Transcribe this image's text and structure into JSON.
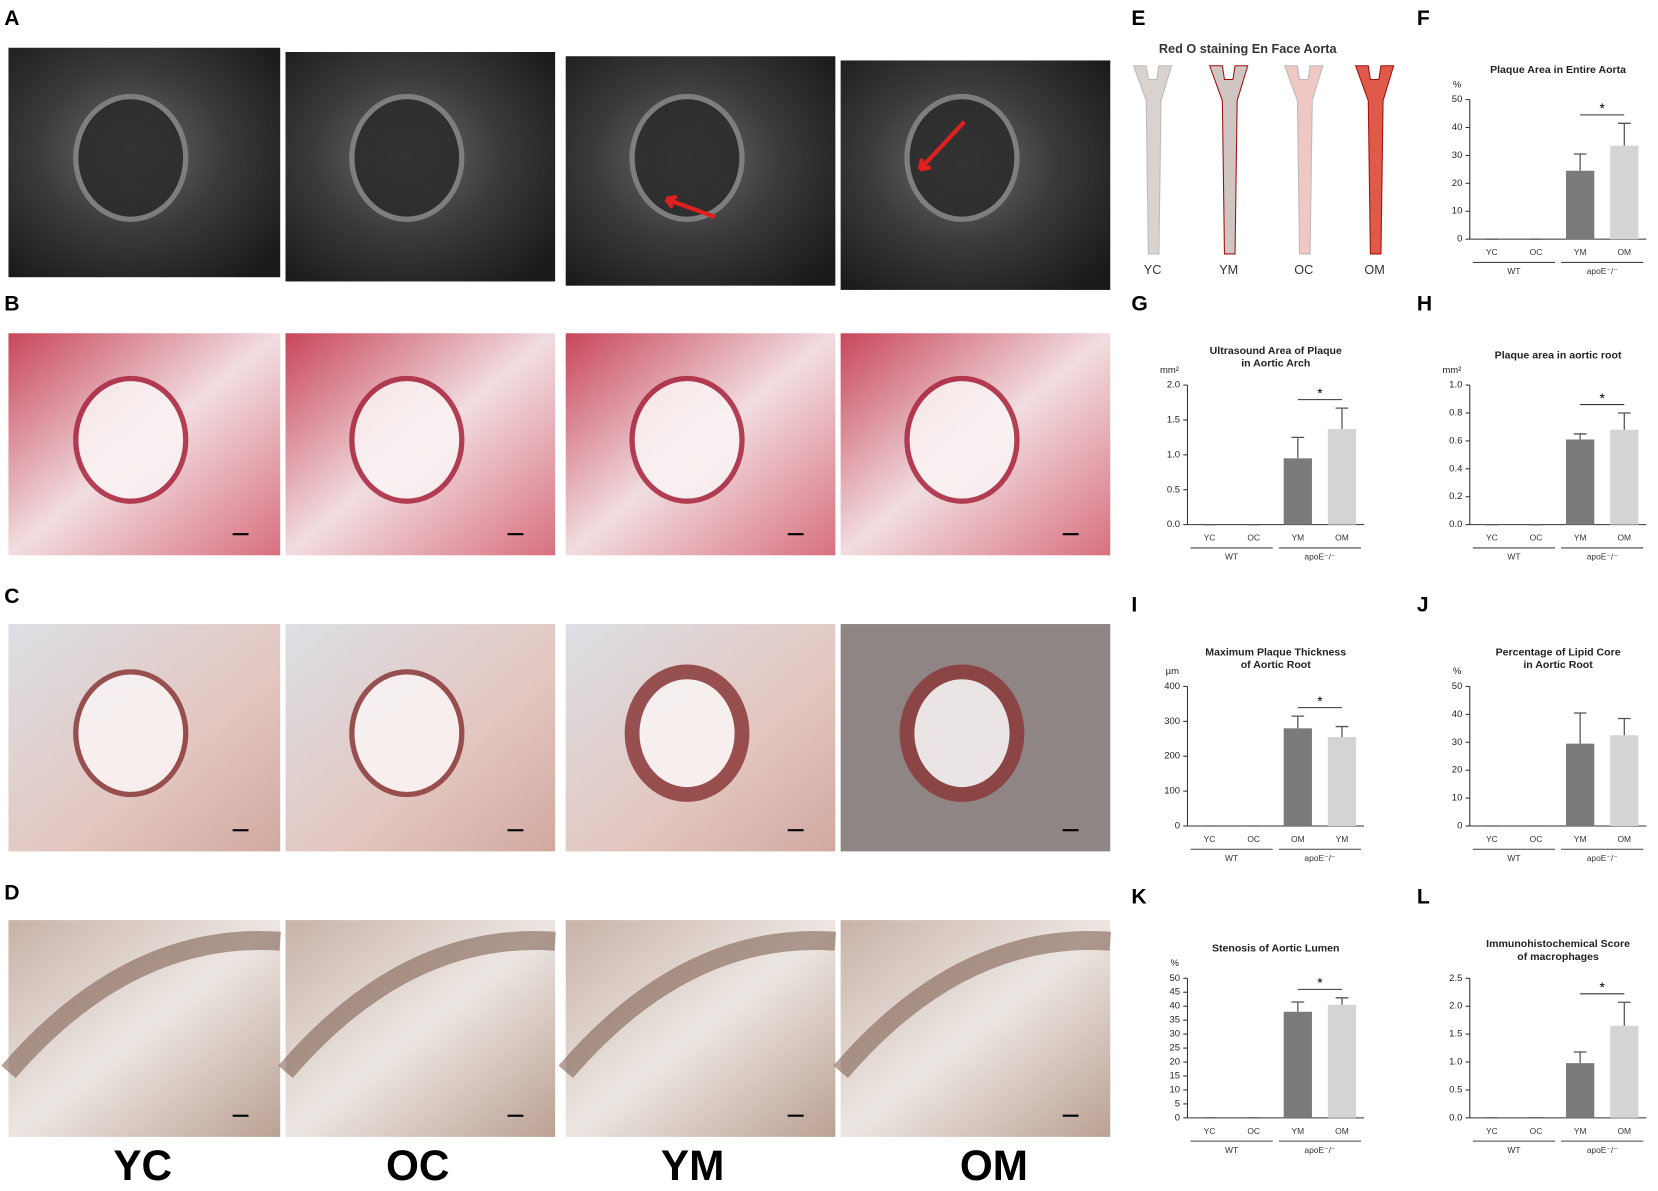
{
  "panels": [
    "A",
    "B",
    "C",
    "D",
    "E",
    "F",
    "G",
    "H",
    "I",
    "J",
    "K",
    "L"
  ],
  "group_labels": [
    "YC",
    "OC",
    "YM",
    "OM"
  ],
  "en_face": {
    "title": "Red O staining En Face Aorta",
    "labels": [
      "YC",
      "YM",
      "OC",
      "OM"
    ]
  },
  "chart_data": [
    {
      "type": "bar",
      "title": [
        "Plaque Area in Entire Aorta"
      ],
      "y_unit": "%",
      "categories": [
        "YC",
        "OC",
        "YM",
        "OM"
      ],
      "values": [
        0,
        0,
        24.5,
        33.5
      ],
      "errors": [
        0,
        0,
        6,
        8
      ],
      "colors": [
        "#7a7a7a",
        "#7a7a7a",
        "#7a7a7a",
        "#d4d4d4"
      ],
      "ylim": [
        0,
        50
      ],
      "yticks": [
        0,
        10,
        20,
        30,
        40,
        50
      ],
      "groups": [
        "WT",
        "apoE⁻/⁻"
      ],
      "significance": "*"
    },
    {
      "type": "bar",
      "title": [
        "Ultrasound Area of Plaque",
        "in Aortic Arch"
      ],
      "y_unit": "mm²",
      "categories": [
        "YC",
        "OC",
        "YM",
        "OM"
      ],
      "values": [
        0,
        0,
        0.95,
        1.37
      ],
      "errors": [
        0,
        0,
        0.3,
        0.3
      ],
      "colors": [
        "#7a7a7a",
        "#7a7a7a",
        "#7a7a7a",
        "#d4d4d4"
      ],
      "ylim": [
        0,
        2
      ],
      "yticks": [
        {
          "value": 0,
          "label": "0.0"
        },
        {
          "value": 0.5,
          "label": "0.5"
        },
        {
          "value": 1,
          "label": "1.0"
        },
        {
          "value": 1.5,
          "label": "1.5"
        },
        {
          "value": 2,
          "label": "2.0"
        }
      ],
      "groups": [
        "WT",
        "apoE⁻/⁻"
      ],
      "significance": "*"
    },
    {
      "type": "bar",
      "title": [
        "Plaque area in aortic root"
      ],
      "y_unit": "mm²",
      "categories": [
        "YC",
        "OC",
        "YM",
        "OM"
      ],
      "values": [
        0,
        0,
        0.61,
        0.68
      ],
      "errors": [
        0,
        0,
        0.04,
        0.12
      ],
      "colors": [
        "#7a7a7a",
        "#7a7a7a",
        "#7a7a7a",
        "#d4d4d4"
      ],
      "ylim": [
        0,
        1
      ],
      "yticks": [
        {
          "value": 0,
          "label": "0.0"
        },
        {
          "value": 0.2,
          "label": "0.2"
        },
        {
          "value": 0.4,
          "label": "0.4"
        },
        {
          "value": 0.6,
          "label": "0.6"
        },
        {
          "value": 0.8,
          "label": "0.8"
        },
        {
          "value": 1,
          "label": "1.0"
        }
      ],
      "groups": [
        "WT",
        "apoE⁻/⁻"
      ],
      "significance": "*"
    },
    {
      "type": "bar",
      "title": [
        "Maximum Plaque Thickness",
        "of Aortic Root"
      ],
      "y_unit": "µm",
      "categories": [
        "YC",
        "OC",
        "OM",
        "YM"
      ],
      "values": [
        0,
        0,
        280,
        255
      ],
      "errors": [
        0,
        0,
        35,
        30
      ],
      "colors": [
        "#7a7a7a",
        "#7a7a7a",
        "#7a7a7a",
        "#d4d4d4"
      ],
      "ylim": [
        0,
        400
      ],
      "yticks": [
        0,
        100,
        200,
        300,
        400
      ],
      "groups": [
        "WT",
        "apoE⁻/⁻"
      ],
      "significance": "*"
    },
    {
      "type": "bar",
      "title": [
        "Percentage of Lipid Core",
        "in  Aortic Root"
      ],
      "y_unit": "%",
      "categories": [
        "YC",
        "OC",
        "YM",
        "OM"
      ],
      "values": [
        0,
        0,
        29.5,
        32.5
      ],
      "errors": [
        0,
        0,
        11,
        6
      ],
      "colors": [
        "#7a7a7a",
        "#7a7a7a",
        "#7a7a7a",
        "#d4d4d4"
      ],
      "ylim": [
        0,
        50
      ],
      "yticks": [
        0,
        10,
        20,
        30,
        40,
        50
      ],
      "groups": [
        "WT",
        "apoE⁻/⁻"
      ]
    },
    {
      "type": "bar",
      "title": [
        "Stenosis of Aortic Lumen"
      ],
      "y_unit": "%",
      "categories": [
        "YC",
        "OC",
        "YM",
        "OM"
      ],
      "values": [
        0,
        0,
        38,
        40.5
      ],
      "errors": [
        0,
        0,
        3.5,
        2.5
      ],
      "colors": [
        "#7a7a7a",
        "#7a7a7a",
        "#7a7a7a",
        "#d4d4d4"
      ],
      "ylim": [
        0,
        50
      ],
      "yticks": [
        0,
        5,
        10,
        15,
        20,
        25,
        30,
        35,
        40,
        45,
        50
      ],
      "groups": [
        "WT",
        "apoE⁻/⁻"
      ],
      "significance": "*"
    },
    {
      "type": "bar",
      "title": [
        "Immunohistochemical Score",
        "of macrophages"
      ],
      "categories": [
        "YC",
        "OC",
        "YM",
        "OM"
      ],
      "values": [
        0,
        0,
        0.98,
        1.65
      ],
      "errors": [
        0,
        0,
        0.2,
        0.42
      ],
      "colors": [
        "#7a7a7a",
        "#7a7a7a",
        "#7a7a7a",
        "#d4d4d4"
      ],
      "ylim": [
        0,
        2.5
      ],
      "yticks": [
        {
          "value": 0,
          "label": "0.0"
        },
        {
          "value": 0.5,
          "label": "0.5"
        },
        {
          "value": 1,
          "label": "1.0"
        },
        {
          "value": 1.5,
          "label": "1.5"
        },
        {
          "value": 2,
          "label": "2.0"
        },
        {
          "value": 2.5,
          "label": "2.5"
        }
      ],
      "groups": [
        "WT",
        "apoE⁻/⁻"
      ],
      "significance": "*"
    }
  ]
}
